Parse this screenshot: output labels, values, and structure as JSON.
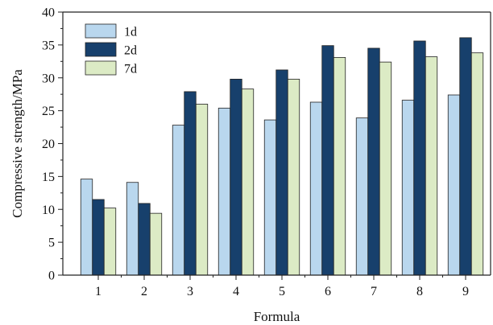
{
  "chart_data": {
    "type": "bar",
    "xlabel": "Formula",
    "ylabel": "Compressive strength/MPa",
    "categories": [
      "1",
      "2",
      "3",
      "4",
      "5",
      "6",
      "7",
      "8",
      "9"
    ],
    "ylim": [
      0,
      40
    ],
    "yticks": [
      0,
      5,
      10,
      15,
      20,
      25,
      30,
      35,
      40
    ],
    "grid": false,
    "legend_position": "top-left",
    "series": [
      {
        "name": "1d",
        "color": "#b9d7ee",
        "values": [
          14.6,
          14.1,
          22.8,
          25.4,
          23.6,
          26.3,
          23.9,
          26.6,
          27.4
        ]
      },
      {
        "name": "2d",
        "color": "#17406c",
        "values": [
          11.5,
          10.9,
          27.9,
          29.8,
          31.2,
          34.9,
          34.5,
          35.6,
          36.1
        ]
      },
      {
        "name": "7d",
        "color": "#dcebc5",
        "values": [
          10.2,
          9.4,
          26.0,
          28.3,
          29.8,
          33.1,
          32.4,
          33.2,
          33.8
        ]
      }
    ]
  }
}
